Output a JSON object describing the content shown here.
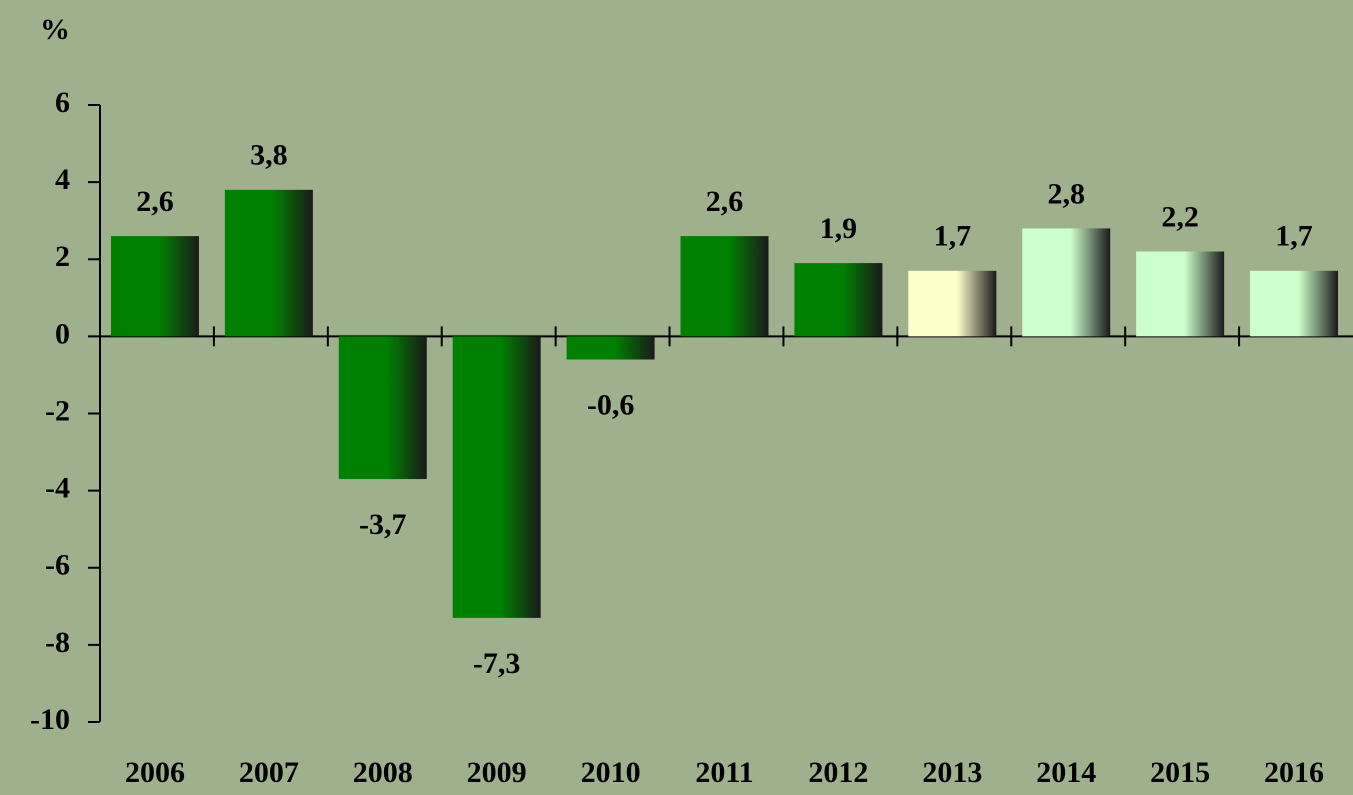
{
  "chart_data": {
    "type": "bar",
    "y_axis_label": "%",
    "categories": [
      "2006",
      "2007",
      "2008",
      "2009",
      "2010",
      "2011",
      "2012",
      "2013",
      "2014",
      "2015",
      "2016"
    ],
    "values": [
      2.6,
      3.8,
      -3.7,
      -7.3,
      -0.6,
      2.6,
      1.9,
      1.7,
      2.8,
      2.2,
      1.7
    ],
    "value_labels": [
      "2,6",
      "3,8",
      "-3,7",
      "-7,3",
      "-0,6",
      "2,6",
      "1,9",
      "1,7",
      "2,8",
      "2,2",
      "1,7"
    ],
    "colors": [
      "#008000",
      "#008000",
      "#008000",
      "#008000",
      "#008000",
      "#008000",
      "#008000",
      "#ffffcc",
      "#ccffcc",
      "#ccffcc",
      "#ccffcc"
    ],
    "ylim": [
      -10,
      6
    ],
    "yticks": [
      -10,
      -8,
      -6,
      -4,
      -2,
      0,
      2,
      4,
      6
    ],
    "grid": false
  }
}
